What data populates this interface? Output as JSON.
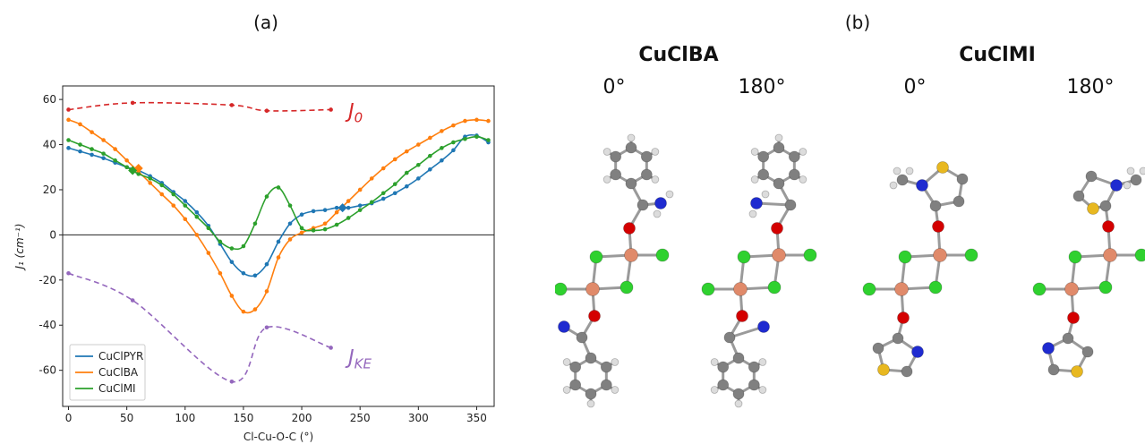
{
  "panels": {
    "a": "(a)",
    "b": "(b)"
  },
  "chart_data": {
    "type": "line",
    "xlabel": "Cl-Cu-O-C (°)",
    "ylabel": "J₁ (cm⁻¹)",
    "xlim": [
      -5,
      365
    ],
    "ylim": [
      -76,
      66
    ],
    "xticks": [
      0,
      50,
      100,
      150,
      200,
      250,
      300,
      350
    ],
    "yticks": [
      -60,
      -40,
      -20,
      0,
      20,
      40,
      60
    ],
    "zero_line": true,
    "grid": false,
    "legend": "bottom-left",
    "series": [
      {
        "name": "CuClPYR",
        "color": "#1f77b4",
        "style": "solid",
        "markers": true,
        "x": [
          0,
          10,
          20,
          30,
          40,
          50,
          60,
          70,
          80,
          90,
          100,
          110,
          120,
          130,
          140,
          150,
          160,
          170,
          180,
          190,
          200,
          210,
          220,
          230,
          240,
          250,
          260,
          270,
          280,
          290,
          300,
          310,
          320,
          330,
          340,
          350,
          360
        ],
        "y": [
          38.5,
          37,
          35.5,
          34,
          32,
          30,
          28.5,
          26,
          23,
          19,
          15,
          10,
          4,
          -4,
          -12,
          -17,
          -18,
          -13,
          -3,
          5,
          9,
          10.5,
          11,
          12,
          12,
          13,
          14,
          16,
          18.5,
          21.5,
          25,
          29,
          33,
          37.5,
          43.5,
          44,
          41
        ]
      },
      {
        "name": "CuClBA",
        "color": "#ff7f0e",
        "style": "solid",
        "markers": true,
        "x": [
          0,
          10,
          20,
          30,
          40,
          50,
          60,
          70,
          80,
          90,
          100,
          110,
          120,
          130,
          140,
          150,
          160,
          170,
          180,
          190,
          200,
          210,
          220,
          230,
          240,
          250,
          260,
          270,
          280,
          290,
          300,
          310,
          320,
          330,
          340,
          350,
          360
        ],
        "y": [
          51,
          49,
          45.5,
          42,
          38,
          33,
          28,
          23,
          18,
          13,
          7,
          0,
          -8,
          -17,
          -27,
          -34,
          -33,
          -25,
          -10,
          -2,
          1,
          3,
          5,
          10,
          15,
          20,
          25,
          29.5,
          33.5,
          37,
          40,
          43,
          46,
          48.5,
          50.5,
          51,
          50.5
        ]
      },
      {
        "name": "CuClMI",
        "color": "#2ca02c",
        "style": "solid",
        "markers": true,
        "x": [
          0,
          10,
          20,
          30,
          40,
          50,
          55,
          60,
          70,
          80,
          90,
          100,
          110,
          120,
          130,
          140,
          150,
          160,
          170,
          180,
          190,
          200,
          210,
          220,
          230,
          240,
          250,
          260,
          270,
          280,
          290,
          300,
          310,
          320,
          330,
          340,
          350,
          360
        ],
        "y": [
          42,
          40,
          38,
          36,
          33,
          30,
          28.5,
          27,
          25,
          22,
          18,
          13,
          8,
          3,
          -3,
          -6,
          -5,
          5,
          17,
          21,
          13,
          3,
          2,
          2.5,
          4.5,
          7.5,
          11,
          14.5,
          18.5,
          22.5,
          27.5,
          31,
          35,
          38.5,
          41,
          42.5,
          43.5,
          42
        ]
      },
      {
        "name": "J₀",
        "color": "#d62728",
        "style": "dashed",
        "markers": true,
        "x": [
          0,
          55,
          140,
          170,
          225
        ],
        "y": [
          55.5,
          58.5,
          57.5,
          55,
          55.5
        ]
      },
      {
        "name": "Jₖₑ",
        "color": "#9467bd",
        "style": "dashed",
        "markers": true,
        "x": [
          0,
          55,
          140,
          170,
          225
        ],
        "y": [
          -17,
          -29,
          -65,
          -41,
          -50
        ]
      }
    ],
    "special_markers": [
      {
        "series": "CuClPYR",
        "x": 235,
        "y": 12,
        "shape": "diamond",
        "color": "#1f77b4"
      },
      {
        "series": "CuClBA",
        "x": 60,
        "y": 29.5,
        "shape": "diamond",
        "color": "#ff7f0e"
      },
      {
        "series": "CuClMI",
        "x": 55,
        "y": 28.5,
        "shape": "diamond",
        "color": "#2ca02c"
      }
    ],
    "annotations": [
      {
        "text": "J",
        "sub": "0",
        "color": "#d62728",
        "x": 240,
        "y": 55
      },
      {
        "text": "J",
        "sub": "KE",
        "color": "#9467bd",
        "x": 240,
        "y": -54
      }
    ],
    "legend_entries": [
      "CuClPYR",
      "CuClBA",
      "CuClMI"
    ]
  },
  "molecules": {
    "groups": [
      {
        "title": "CuClBA",
        "angles": [
          "0°",
          "180°"
        ]
      },
      {
        "title": "CuClMI",
        "angles": [
          "0°",
          "180°"
        ]
      }
    ],
    "atom_colors": {
      "Cu": "#e08a6a",
      "Cl": "#2fd12f",
      "O": "#d40000",
      "N": "#1f2bd0",
      "S": "#e8b820",
      "C": "#808080",
      "H": "#dcdcdc"
    }
  }
}
